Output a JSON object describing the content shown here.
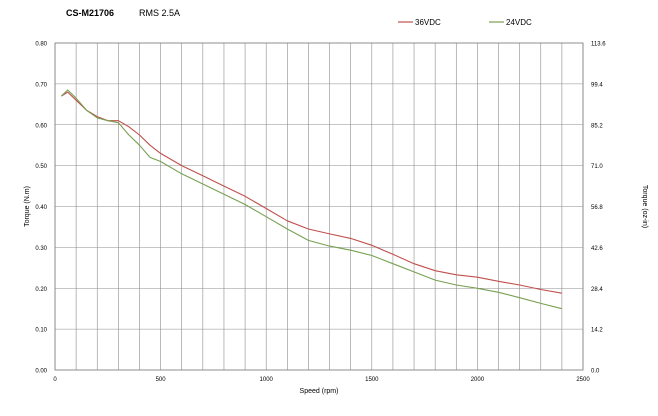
{
  "chart_data": {
    "type": "line",
    "title": "CS-M21706",
    "subtitle": "RMS 2.5A",
    "xlabel": "Speed (rpm)",
    "ylabel": "Torque (N.m)",
    "y2label": "Torque (oz-in)",
    "xlim": [
      0,
      2500
    ],
    "ylim": [
      0,
      0.8
    ],
    "xticks": [
      "0",
      "500",
      "1000",
      "1500",
      "2000",
      "2500"
    ],
    "yticks": [
      "0.00",
      "0.10",
      "0.20",
      "0.30",
      "0.40",
      "0.50",
      "0.60",
      "0.70",
      "0.80"
    ],
    "y2ticks": [
      "0.0",
      "14.2",
      "28.4",
      "42.6",
      "56.8",
      "71.0",
      "85.2",
      "99.4",
      "113.6"
    ],
    "grid": true,
    "legend_position": "top-right",
    "series": [
      {
        "name": "36VDC",
        "color": "#c0504d",
        "x": [
          30,
          60,
          100,
          150,
          200,
          250,
          300,
          350,
          400,
          450,
          500,
          600,
          700,
          800,
          900,
          1000,
          1100,
          1200,
          1300,
          1400,
          1500,
          1600,
          1700,
          1800,
          1900,
          2000,
          2100,
          2200,
          2300,
          2400
        ],
        "y": [
          0.67,
          0.68,
          0.66,
          0.635,
          0.62,
          0.61,
          0.61,
          0.595,
          0.575,
          0.55,
          0.53,
          0.5,
          0.475,
          0.45,
          0.425,
          0.395,
          0.365,
          0.345,
          0.333,
          0.322,
          0.305,
          0.283,
          0.26,
          0.243,
          0.233,
          0.227,
          0.217,
          0.208,
          0.197,
          0.188
        ]
      },
      {
        "name": "24VDC",
        "color": "#77a052",
        "x": [
          30,
          60,
          100,
          150,
          200,
          250,
          300,
          350,
          400,
          450,
          500,
          600,
          700,
          800,
          900,
          1000,
          1100,
          1200,
          1300,
          1400,
          1500,
          1600,
          1700,
          1800,
          1900,
          2000,
          2100,
          2200,
          2300,
          2400
        ],
        "y": [
          0.67,
          0.685,
          0.665,
          0.635,
          0.617,
          0.61,
          0.605,
          0.575,
          0.55,
          0.52,
          0.51,
          0.48,
          0.455,
          0.43,
          0.405,
          0.375,
          0.345,
          0.317,
          0.303,
          0.293,
          0.28,
          0.26,
          0.24,
          0.22,
          0.208,
          0.2,
          0.19,
          0.177,
          0.163,
          0.15
        ]
      }
    ]
  }
}
